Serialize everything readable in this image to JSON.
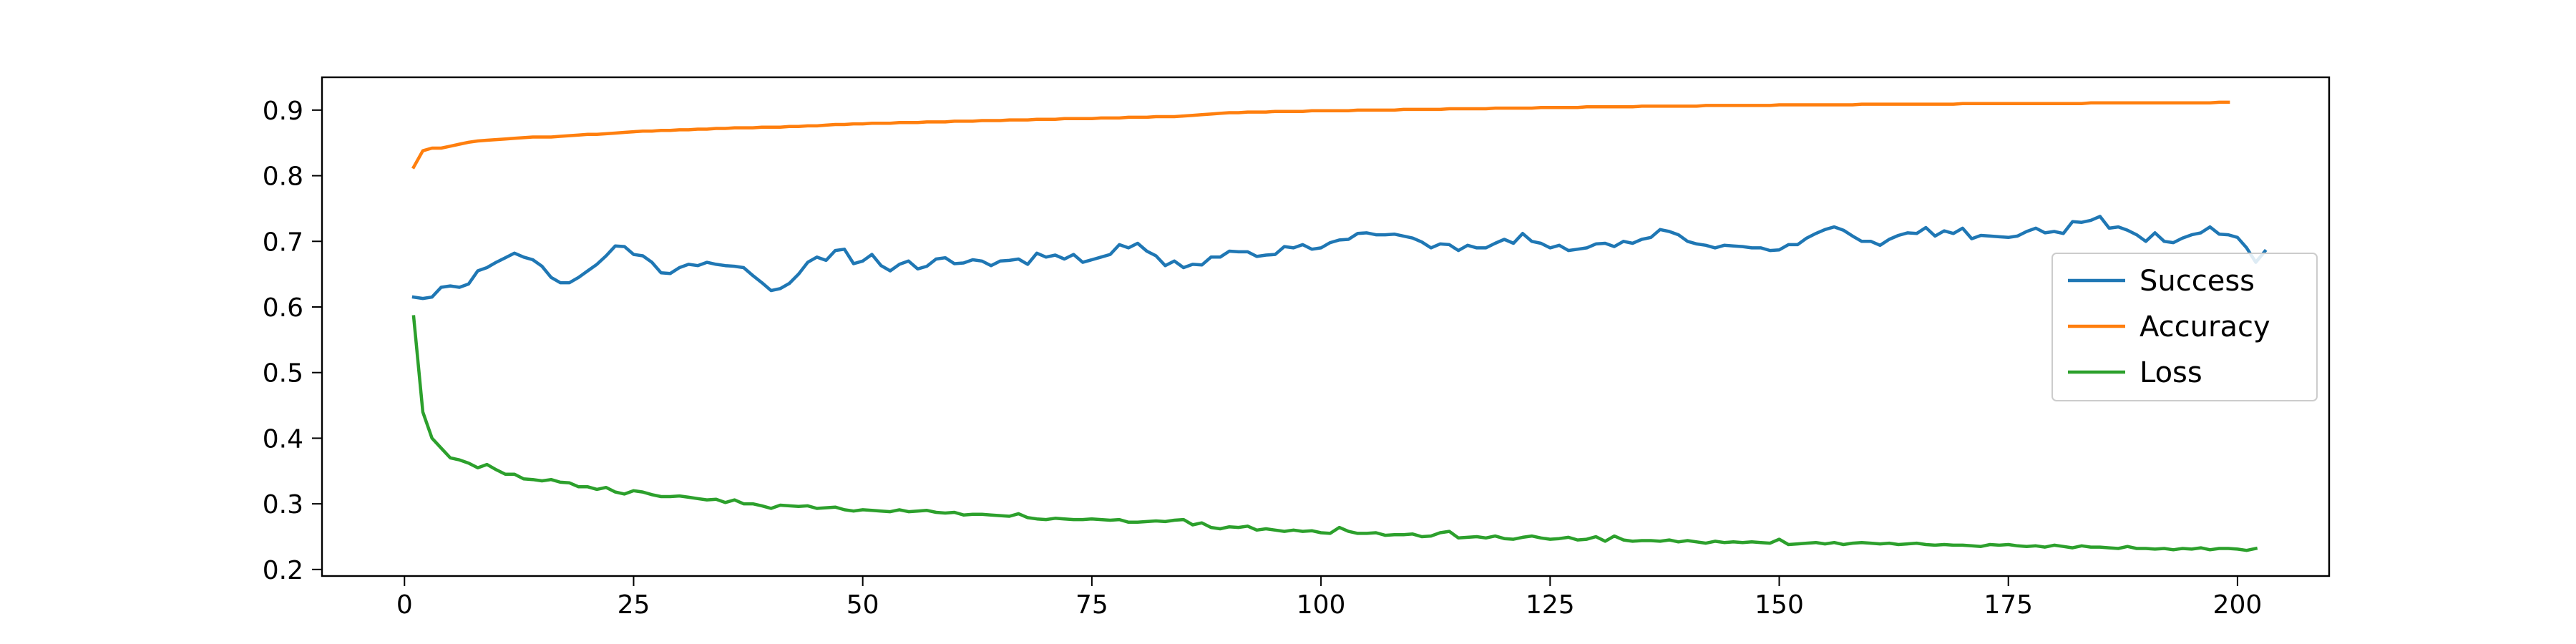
{
  "chart_data": {
    "type": "line",
    "title": "",
    "xlabel": "",
    "ylabel": "",
    "xlim": [
      -9,
      210
    ],
    "ylim": [
      0.19,
      0.95
    ],
    "xticks": [
      0,
      25,
      50,
      75,
      100,
      125,
      150,
      175,
      200
    ],
    "yticks": [
      0.2,
      0.3,
      0.4,
      0.5,
      0.6,
      0.7,
      0.8,
      0.9
    ],
    "grid": false,
    "legend_position": "center-right",
    "colors": {
      "Success": "#1f77b4",
      "Accuracy": "#ff7f0e",
      "Loss": "#2ca02c"
    },
    "series": [
      {
        "name": "Success",
        "x_start": 1,
        "x_step": 1,
        "values": [
          0.615,
          0.613,
          0.615,
          0.63,
          0.632,
          0.63,
          0.635,
          0.655,
          0.66,
          0.668,
          0.675,
          0.682,
          0.676,
          0.672,
          0.662,
          0.645,
          0.637,
          0.637,
          0.645,
          0.655,
          0.665,
          0.678,
          0.693,
          0.692,
          0.68,
          0.678,
          0.668,
          0.652,
          0.651,
          0.66,
          0.665,
          0.663,
          0.668,
          0.665,
          0.663,
          0.662,
          0.66,
          0.648,
          0.637,
          0.625,
          0.628,
          0.636,
          0.65,
          0.668,
          0.676,
          0.671,
          0.686,
          0.688,
          0.666,
          0.67,
          0.68,
          0.663,
          0.655,
          0.665,
          0.67,
          0.658,
          0.662,
          0.673,
          0.675,
          0.666,
          0.667,
          0.672,
          0.67,
          0.663,
          0.67,
          0.671,
          0.673,
          0.665,
          0.682,
          0.676,
          0.679,
          0.673,
          0.68,
          0.668,
          0.672,
          0.676,
          0.68,
          0.695,
          0.69,
          0.697,
          0.685,
          0.678,
          0.663,
          0.67,
          0.66,
          0.665,
          0.664,
          0.676,
          0.676,
          0.685,
          0.684,
          0.684,
          0.677,
          0.679,
          0.68,
          0.692,
          0.69,
          0.695,
          0.688,
          0.69,
          0.698,
          0.702,
          0.703,
          0.712,
          0.713,
          0.71,
          0.71,
          0.711,
          0.708,
          0.705,
          0.699,
          0.69,
          0.696,
          0.695,
          0.686,
          0.694,
          0.69,
          0.69,
          0.697,
          0.703,
          0.697,
          0.712,
          0.7,
          0.697,
          0.69,
          0.694,
          0.686,
          0.688,
          0.69,
          0.696,
          0.697,
          0.692,
          0.7,
          0.697,
          0.703,
          0.706,
          0.718,
          0.715,
          0.71,
          0.7,
          0.696,
          0.694,
          0.69,
          0.694,
          0.693,
          0.692,
          0.69,
          0.69,
          0.686,
          0.687,
          0.695,
          0.695,
          0.705,
          0.712,
          0.718,
          0.722,
          0.717,
          0.708,
          0.7,
          0.7,
          0.694,
          0.703,
          0.709,
          0.713,
          0.712,
          0.721,
          0.708,
          0.716,
          0.712,
          0.72,
          0.704,
          0.709,
          0.708,
          0.707,
          0.706,
          0.708,
          0.715,
          0.72,
          0.713,
          0.715,
          0.712,
          0.73,
          0.729,
          0.732,
          0.738,
          0.72,
          0.722,
          0.717,
          0.71,
          0.7,
          0.713,
          0.7,
          0.698,
          0.705,
          0.71,
          0.713,
          0.722,
          0.711,
          0.71,
          0.706,
          0.69,
          0.668,
          0.685
        ]
      },
      {
        "name": "Accuracy",
        "x_start": 1,
        "x_step": 1,
        "values": [
          0.813,
          0.838,
          0.842,
          0.842,
          0.845,
          0.848,
          0.851,
          0.853,
          0.854,
          0.855,
          0.856,
          0.857,
          0.858,
          0.859,
          0.859,
          0.859,
          0.86,
          0.861,
          0.862,
          0.863,
          0.863,
          0.864,
          0.865,
          0.866,
          0.867,
          0.868,
          0.868,
          0.869,
          0.869,
          0.87,
          0.87,
          0.871,
          0.871,
          0.872,
          0.872,
          0.873,
          0.873,
          0.873,
          0.874,
          0.874,
          0.874,
          0.875,
          0.875,
          0.876,
          0.876,
          0.877,
          0.878,
          0.878,
          0.879,
          0.879,
          0.88,
          0.88,
          0.88,
          0.881,
          0.881,
          0.881,
          0.882,
          0.882,
          0.882,
          0.883,
          0.883,
          0.883,
          0.884,
          0.884,
          0.884,
          0.885,
          0.885,
          0.885,
          0.886,
          0.886,
          0.886,
          0.887,
          0.887,
          0.887,
          0.887,
          0.888,
          0.888,
          0.888,
          0.889,
          0.889,
          0.889,
          0.89,
          0.89,
          0.89,
          0.891,
          0.892,
          0.893,
          0.894,
          0.895,
          0.896,
          0.896,
          0.897,
          0.897,
          0.897,
          0.898,
          0.898,
          0.898,
          0.898,
          0.899,
          0.899,
          0.899,
          0.899,
          0.899,
          0.9,
          0.9,
          0.9,
          0.9,
          0.9,
          0.901,
          0.901,
          0.901,
          0.901,
          0.901,
          0.902,
          0.902,
          0.902,
          0.902,
          0.902,
          0.903,
          0.903,
          0.903,
          0.903,
          0.903,
          0.904,
          0.904,
          0.904,
          0.904,
          0.904,
          0.905,
          0.905,
          0.905,
          0.905,
          0.905,
          0.905,
          0.906,
          0.906,
          0.906,
          0.906,
          0.906,
          0.906,
          0.906,
          0.907,
          0.907,
          0.907,
          0.907,
          0.907,
          0.907,
          0.907,
          0.907,
          0.908,
          0.908,
          0.908,
          0.908,
          0.908,
          0.908,
          0.908,
          0.908,
          0.908,
          0.909,
          0.909,
          0.909,
          0.909,
          0.909,
          0.909,
          0.909,
          0.909,
          0.909,
          0.909,
          0.909,
          0.91,
          0.91,
          0.91,
          0.91,
          0.91,
          0.91,
          0.91,
          0.91,
          0.91,
          0.91,
          0.91,
          0.91,
          0.91,
          0.91,
          0.911,
          0.911,
          0.911,
          0.911,
          0.911,
          0.911,
          0.911,
          0.911,
          0.911,
          0.911,
          0.911,
          0.911,
          0.911,
          0.911,
          0.912,
          0.912
        ]
      },
      {
        "name": "Loss",
        "x_start": 1,
        "x_step": 1,
        "values": [
          0.585,
          0.44,
          0.4,
          0.385,
          0.37,
          0.367,
          0.362,
          0.355,
          0.36,
          0.352,
          0.345,
          0.345,
          0.338,
          0.337,
          0.335,
          0.337,
          0.333,
          0.332,
          0.326,
          0.326,
          0.322,
          0.325,
          0.318,
          0.315,
          0.32,
          0.318,
          0.314,
          0.311,
          0.311,
          0.312,
          0.31,
          0.308,
          0.306,
          0.307,
          0.302,
          0.306,
          0.3,
          0.3,
          0.297,
          0.293,
          0.298,
          0.297,
          0.296,
          0.297,
          0.293,
          0.294,
          0.295,
          0.291,
          0.289,
          0.291,
          0.29,
          0.289,
          0.288,
          0.291,
          0.288,
          0.289,
          0.29,
          0.287,
          0.286,
          0.287,
          0.283,
          0.284,
          0.284,
          0.283,
          0.282,
          0.281,
          0.285,
          0.279,
          0.277,
          0.276,
          0.278,
          0.277,
          0.276,
          0.276,
          0.277,
          0.276,
          0.275,
          0.276,
          0.272,
          0.272,
          0.273,
          0.274,
          0.273,
          0.275,
          0.276,
          0.268,
          0.271,
          0.264,
          0.262,
          0.265,
          0.264,
          0.266,
          0.26,
          0.262,
          0.26,
          0.258,
          0.26,
          0.258,
          0.259,
          0.256,
          0.255,
          0.264,
          0.258,
          0.255,
          0.255,
          0.256,
          0.252,
          0.253,
          0.253,
          0.254,
          0.25,
          0.251,
          0.256,
          0.258,
          0.248,
          0.249,
          0.25,
          0.248,
          0.251,
          0.247,
          0.246,
          0.249,
          0.251,
          0.248,
          0.246,
          0.247,
          0.249,
          0.245,
          0.246,
          0.25,
          0.243,
          0.251,
          0.245,
          0.243,
          0.244,
          0.244,
          0.243,
          0.245,
          0.242,
          0.244,
          0.242,
          0.24,
          0.243,
          0.241,
          0.242,
          0.241,
          0.242,
          0.241,
          0.24,
          0.246,
          0.238,
          0.239,
          0.24,
          0.241,
          0.239,
          0.241,
          0.238,
          0.24,
          0.241,
          0.24,
          0.239,
          0.24,
          0.238,
          0.239,
          0.24,
          0.238,
          0.237,
          0.238,
          0.237,
          0.237,
          0.236,
          0.235,
          0.238,
          0.237,
          0.238,
          0.236,
          0.235,
          0.236,
          0.234,
          0.237,
          0.235,
          0.233,
          0.236,
          0.234,
          0.234,
          0.233,
          0.232,
          0.235,
          0.232,
          0.232,
          0.231,
          0.232,
          0.23,
          0.232,
          0.231,
          0.233,
          0.23,
          0.232,
          0.232,
          0.231,
          0.229,
          0.232
        ]
      }
    ]
  }
}
